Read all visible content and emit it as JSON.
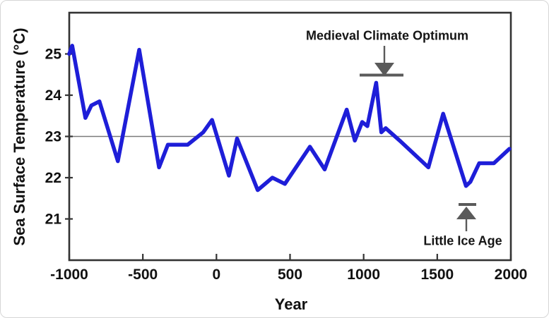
{
  "figure": {
    "background": "#ffffff",
    "frame_color": "#333333",
    "reference_line_color": "#7a7a7a",
    "annotation_color": "#5a5a5a",
    "text_color": "#111111"
  },
  "chart_data": {
    "type": "line",
    "title": "",
    "xlabel": "Year",
    "ylabel": "Sea Surface Temperature (°C)",
    "xlim": [
      -1000,
      2000
    ],
    "ylim": [
      20,
      26
    ],
    "xticks": [
      -1000,
      -500,
      0,
      500,
      1000,
      1500,
      2000
    ],
    "yticks": [
      21,
      22,
      23,
      24,
      25
    ],
    "reference_line_y": 23,
    "grid": false,
    "legend_position": "none",
    "series": [
      {
        "name": "sea-surface-temperature",
        "color": "#1e1ed8",
        "stroke_width": 5.5,
        "points": [
          [
            -1000,
            25.0
          ],
          [
            -980,
            25.2
          ],
          [
            -890,
            23.45
          ],
          [
            -850,
            23.75
          ],
          [
            -795,
            23.85
          ],
          [
            -670,
            22.4
          ],
          [
            -525,
            25.1
          ],
          [
            -390,
            22.25
          ],
          [
            -330,
            22.8
          ],
          [
            -195,
            22.8
          ],
          [
            -90,
            23.1
          ],
          [
            -30,
            23.4
          ],
          [
            85,
            22.05
          ],
          [
            140,
            22.95
          ],
          [
            280,
            21.7
          ],
          [
            380,
            22.0
          ],
          [
            465,
            21.85
          ],
          [
            635,
            22.75
          ],
          [
            735,
            22.2
          ],
          [
            885,
            23.65
          ],
          [
            940,
            22.9
          ],
          [
            990,
            23.35
          ],
          [
            1025,
            23.25
          ],
          [
            1085,
            24.3
          ],
          [
            1120,
            23.1
          ],
          [
            1150,
            23.2
          ],
          [
            1245,
            22.9
          ],
          [
            1440,
            22.25
          ],
          [
            1540,
            23.55
          ],
          [
            1695,
            21.8
          ],
          [
            1725,
            21.9
          ],
          [
            1785,
            22.35
          ],
          [
            1885,
            22.35
          ],
          [
            1990,
            22.7
          ]
        ]
      }
    ],
    "annotations": [
      {
        "id": "medieval-climate-optimum",
        "label": "Medieval Climate Optimum",
        "arrow_direction": "down",
        "marker": {
          "stem": [
            543,
            64,
            543,
            91
          ],
          "head": [
            [
              529,
              88
            ],
            [
              557,
              88
            ],
            [
              543,
              107
            ]
          ],
          "bar": [
            508,
            570,
            105.5
          ]
        }
      },
      {
        "id": "little-ice-age",
        "label": "Little Ice Age",
        "arrow_direction": "up",
        "marker": {
          "stem": [
            659,
            309,
            659,
            327
          ],
          "head": [
            [
              645,
              310
            ],
            [
              673,
              310
            ],
            [
              659,
              292
            ]
          ],
          "bar": [
            648,
            673,
            289
          ]
        }
      }
    ]
  }
}
